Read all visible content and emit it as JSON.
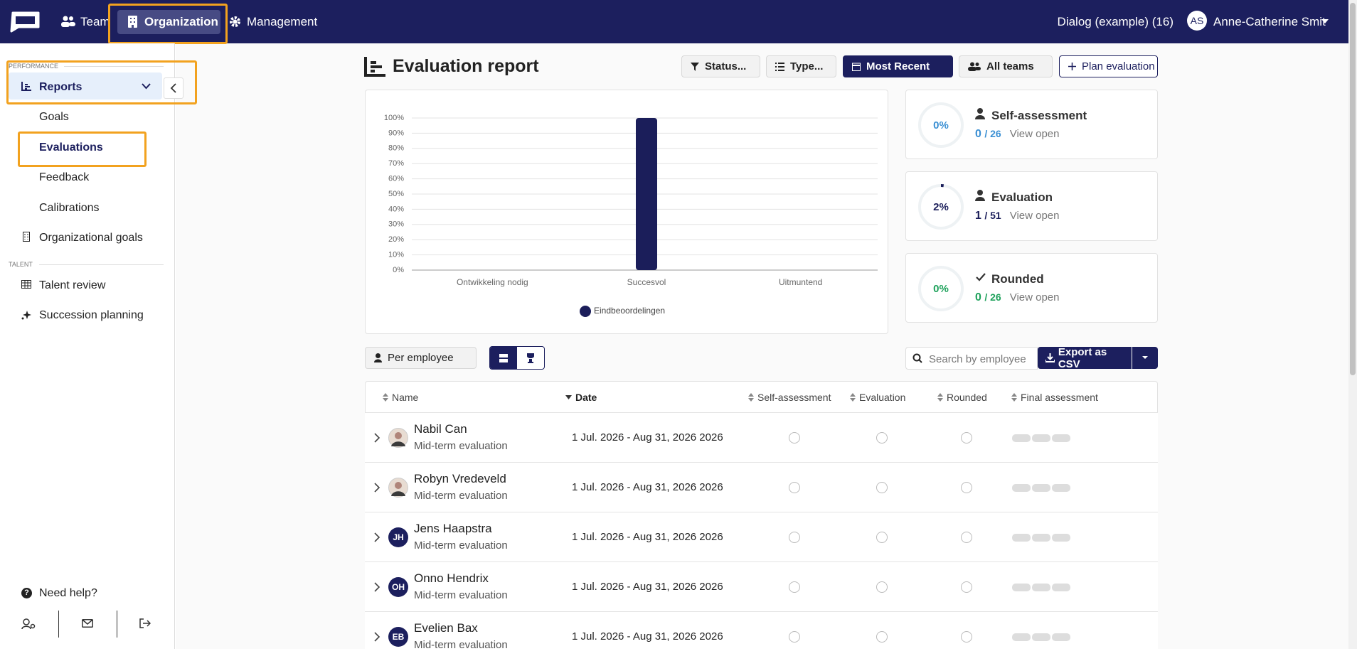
{
  "nav": {
    "items": [
      "Team",
      "Organization",
      "Management"
    ],
    "dialog": "Dialog (example) (16)",
    "initials": "AS",
    "user": "Anne-Catherine Smit"
  },
  "sidebar": {
    "sections": [
      {
        "label": "PERFORMANCE",
        "items": [
          "Reports",
          "Goals",
          "Evaluations",
          "Feedback",
          "Calibrations",
          "Organizational goals"
        ]
      },
      {
        "label": "TALENT",
        "items": [
          "Talent review",
          "Succession planning"
        ]
      }
    ],
    "help": "Need help?"
  },
  "header": {
    "title": "Evaluation report",
    "filters": [
      "Status...",
      "Type...",
      "Most Recent",
      "All teams"
    ],
    "action": "Plan evaluation"
  },
  "chart_data": {
    "type": "bar",
    "categories": [
      "Ontwikkeling nodig",
      "Succesvol",
      "Uitmuntend"
    ],
    "series": [
      {
        "name": "Eindbeoordelingen",
        "color": "#1b1e5a",
        "values": [
          0,
          100,
          0
        ]
      }
    ],
    "ylim": [
      0,
      100
    ],
    "yticks": [
      {
        "value": 0,
        "label": "0%"
      },
      {
        "value": 10,
        "label": "10%"
      },
      {
        "value": 20,
        "label": "20%"
      },
      {
        "value": 30,
        "label": "30%"
      },
      {
        "value": 40,
        "label": "40%"
      },
      {
        "value": 50,
        "label": "50%"
      },
      {
        "value": 60,
        "label": "60%"
      },
      {
        "value": 70,
        "label": "70%"
      },
      {
        "value": 80,
        "label": "80%"
      },
      {
        "value": 90,
        "label": "90%"
      },
      {
        "value": 100,
        "label": "100%"
      }
    ],
    "grid": true
  },
  "cards": [
    {
      "title": "Self-assessment",
      "percent": {
        "value": 0,
        "label": "0%"
      },
      "count": "0",
      "total": "/ 26",
      "link": "View open",
      "color": "#3a8fd3"
    },
    {
      "title": "Evaluation",
      "percent": {
        "value": 2,
        "label": "2%"
      },
      "count": "1",
      "total": "/ 51",
      "link": "View open",
      "color": "#1b1e5a"
    },
    {
      "title": "Rounded",
      "percent": {
        "value": 0,
        "label": "0%"
      },
      "count": "0",
      "total": "/ 26",
      "link": "View open",
      "color": "#1fa25c"
    }
  ],
  "toolbar": {
    "grouping": "Per employee",
    "search_placeholder": "Search by employee",
    "export": "Export as CSV"
  },
  "table": {
    "columns": [
      "Name",
      "Date",
      "Self-assessment",
      "Evaluation",
      "Rounded",
      "Final assessment"
    ],
    "rows": [
      {
        "name": "Nabil Can",
        "type": "Mid-term evaluation",
        "date": "1 Jul. 2026 - Aug 31, 2026 2026",
        "initials": null
      },
      {
        "name": "Robyn Vredeveld",
        "type": "Mid-term evaluation",
        "date": "1 Jul. 2026 - Aug 31, 2026 2026",
        "initials": null
      },
      {
        "name": "Jens Haapstra",
        "type": "Mid-term evaluation",
        "date": "1 Jul. 2026 - Aug 31, 2026 2026",
        "initials": "JH"
      },
      {
        "name": "Onno Hendrix",
        "type": "Mid-term evaluation",
        "date": "1 Jul. 2026 - Aug 31, 2026 2026",
        "initials": "OH"
      },
      {
        "name": "Evelien Bax",
        "type": "Mid-term evaluation",
        "date": "1 Jul. 2026 - Aug 31, 2026 2026",
        "initials": "EB"
      }
    ]
  }
}
